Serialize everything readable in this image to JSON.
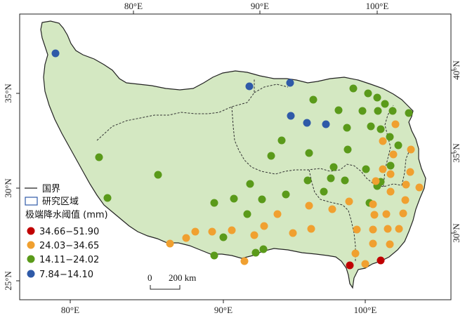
{
  "map": {
    "background_color": "#ffffff",
    "land_color": "#d4e8c2",
    "border_color": "#333333",
    "top_lon_ticks": [
      "80°E",
      "90°E",
      "100°E"
    ],
    "bottom_lon_ticks": [
      "80°E",
      "90°E",
      "100°E"
    ],
    "left_lat_ticks": [
      "35°N",
      "30°N",
      "25°N"
    ],
    "right_lat_ticks": [
      "40°N",
      "35°N",
      "30°N"
    ]
  },
  "legend": {
    "national_border_label": "国界",
    "study_area_label": "研究区域",
    "title": "极端降水阈值 (mm)",
    "classes": [
      {
        "label": "34.66−51.90",
        "color": "#c00000"
      },
      {
        "label": "24.03−34.65",
        "color": "#f0a030"
      },
      {
        "label": "14.11−24.02",
        "color": "#5a9a1a"
      },
      {
        "label": "7.84−14.10",
        "color": "#2f5aa8"
      }
    ]
  },
  "scale_bar": {
    "zero": "0",
    "distance": "200 km"
  },
  "stations": {
    "class_0": [
      [
        498,
        378
      ],
      [
        542,
        371
      ]
    ],
    "class_1": [
      [
        563,
        177
      ],
      [
        585,
        213
      ],
      [
        545,
        201
      ],
      [
        560,
        220
      ],
      [
        545,
        241
      ],
      [
        556,
        248
      ],
      [
        584,
        245
      ],
      [
        535,
        258
      ],
      [
        578,
        263
      ],
      [
        597,
        267
      ],
      [
        556,
        273
      ],
      [
        497,
        287
      ],
      [
        531,
        291
      ],
      [
        577,
        285
      ],
      [
        440,
        293
      ],
      [
        473,
        298
      ],
      [
        395,
        305
      ],
      [
        533,
        306
      ],
      [
        550,
        305
      ],
      [
        574,
        304
      ],
      [
        508,
        327
      ],
      [
        531,
        327
      ],
      [
        552,
        326
      ],
      [
        568,
        326
      ],
      [
        443,
        326
      ],
      [
        417,
        332
      ],
      [
        376,
        322
      ],
      [
        362,
        335
      ],
      [
        330,
        328
      ],
      [
        302,
        330
      ],
      [
        278,
        330
      ],
      [
        265,
        339
      ],
      [
        242,
        347
      ],
      [
        531,
        347
      ],
      [
        555,
        348
      ],
      [
        506,
        361
      ],
      [
        520,
        376
      ],
      [
        348,
        372
      ]
    ],
    "class_2": [
      [
        503,
        126
      ],
      [
        524,
        133
      ],
      [
        537,
        139
      ],
      [
        548,
        148
      ],
      [
        446,
        142
      ],
      [
        482,
        157
      ],
      [
        516,
        158
      ],
      [
        538,
        158
      ],
      [
        559,
        158
      ],
      [
        582,
        161
      ],
      [
        494,
        182
      ],
      [
        528,
        180
      ],
      [
        542,
        184
      ],
      [
        555,
        195
      ],
      [
        401,
        200
      ],
      [
        440,
        218
      ],
      [
        386,
        222
      ],
      [
        495,
        213
      ],
      [
        567,
        207
      ],
      [
        475,
        238
      ],
      [
        521,
        241
      ],
      [
        556,
        236
      ],
      [
        438,
        257
      ],
      [
        471,
        254
      ],
      [
        491,
        257
      ],
      [
        537,
        265
      ],
      [
        542,
        259
      ],
      [
        141,
        224
      ],
      [
        225,
        249
      ],
      [
        356,
        262
      ],
      [
        407,
        277
      ],
      [
        305,
        289
      ],
      [
        333,
        283
      ],
      [
        373,
        284
      ],
      [
        461,
        273
      ],
      [
        153,
        282
      ],
      [
        352,
        305
      ],
      [
        526,
        289
      ],
      [
        318,
        338
      ],
      [
        364,
        360
      ],
      [
        375,
        355
      ],
      [
        305,
        364
      ]
    ],
    "class_3": [
      [
        79,
        76
      ],
      [
        355,
        123
      ],
      [
        413,
        118
      ],
      [
        414,
        165
      ],
      [
        437,
        175
      ],
      [
        464,
        177
      ]
    ]
  }
}
